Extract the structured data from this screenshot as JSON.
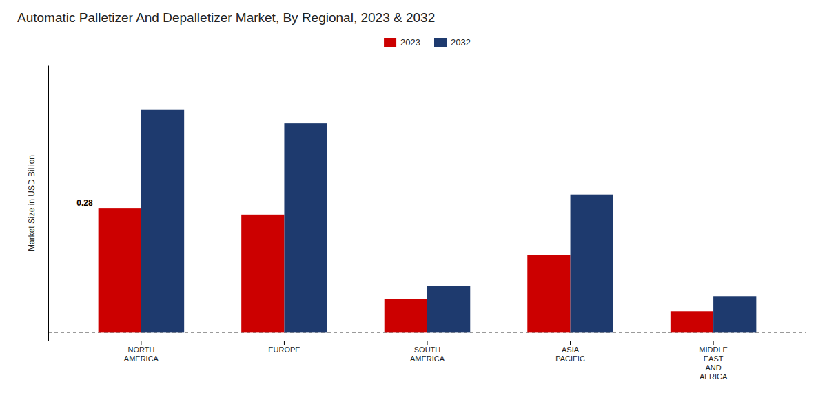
{
  "chart_data": {
    "type": "bar",
    "title": "Automatic Palletizer And Depalletizer Market, By Regional, 2023 & 2032",
    "ylabel": "Market Size in USD Billion",
    "categories": [
      "NORTH\nAMERICA",
      "EUROPE",
      "SOUTH\nAMERICA",
      "ASIA\nPACIFIC",
      "MIDDLE\nEAST\nAND\nAFRICA"
    ],
    "series": [
      {
        "name": "2023",
        "color": "#cc0000",
        "values": [
          0.28,
          0.265,
          0.075,
          0.175,
          0.048
        ]
      },
      {
        "name": "2032",
        "color": "#1e3a6e",
        "values": [
          0.5,
          0.47,
          0.105,
          0.31,
          0.082
        ]
      }
    ],
    "annotations": [
      {
        "text": "0.28",
        "category": "NORTH\nAMERICA",
        "series": "2023"
      }
    ],
    "hlines": [
      {
        "y": 0.0,
        "line_style": "dashed"
      }
    ],
    "ylim": [
      -0.018,
      0.6
    ],
    "yticks": [],
    "tick_labels": "x",
    "grid": false,
    "legend": "top"
  }
}
